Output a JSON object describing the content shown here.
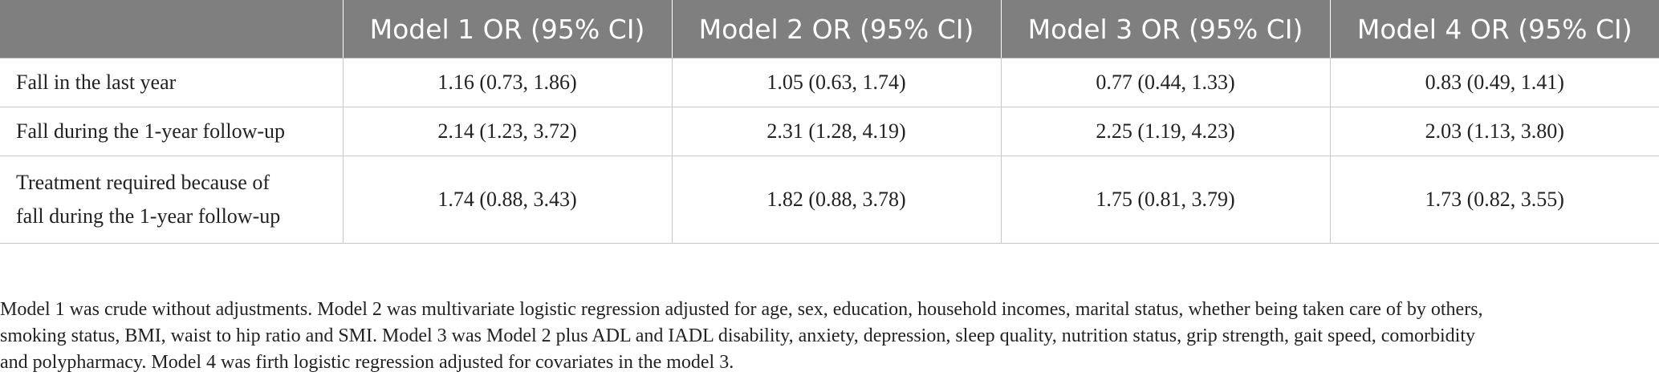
{
  "table": {
    "headers": [
      "",
      "Model 1 OR (95% CI)",
      "Model 2 OR (95% CI)",
      "Model 3 OR (95% CI)",
      "Model 4 OR (95% CI)"
    ],
    "rows": [
      {
        "label": "Fall in the last year",
        "values": [
          "1.16 (0.73, 1.86)",
          "1.05 (0.63, 1.74)",
          "0.77 (0.44, 1.33)",
          "0.83 (0.49, 1.41)"
        ]
      },
      {
        "label": "Fall during the 1-year follow-up",
        "values": [
          "2.14 (1.23, 3.72)",
          "2.31 (1.28, 4.19)",
          "2.25 (1.19, 4.23)",
          "2.03 (1.13, 3.80)"
        ]
      },
      {
        "label_lines": [
          "Treatment required because of",
          "fall during the 1-year follow-up"
        ],
        "values": [
          "1.74 (0.88, 3.43)",
          "1.82 (0.88, 3.78)",
          "1.75 (0.81, 3.79)",
          "1.73 (0.82, 3.55)"
        ]
      }
    ]
  },
  "footnote": {
    "lines": [
      "Model 1 was crude without adjustments. Model 2 was multivariate logistic regression adjusted for age, sex, education, household incomes, marital status, whether being taken care of by others,",
      "smoking status, BMI, waist to hip ratio and SMI. Model 3 was Model 2 plus ADL and IADL disability, anxiety, depression, sleep quality, nutrition status, grip strength, gait speed, comorbidity",
      "and polypharmacy. Model 4 was firth logistic regression adjusted for covariates in the model 3."
    ]
  },
  "colors": {
    "header_bg": "#7f7f7f",
    "header_text": "#ffffff",
    "grid": "#c7c7c7",
    "body_text": "#222222"
  }
}
